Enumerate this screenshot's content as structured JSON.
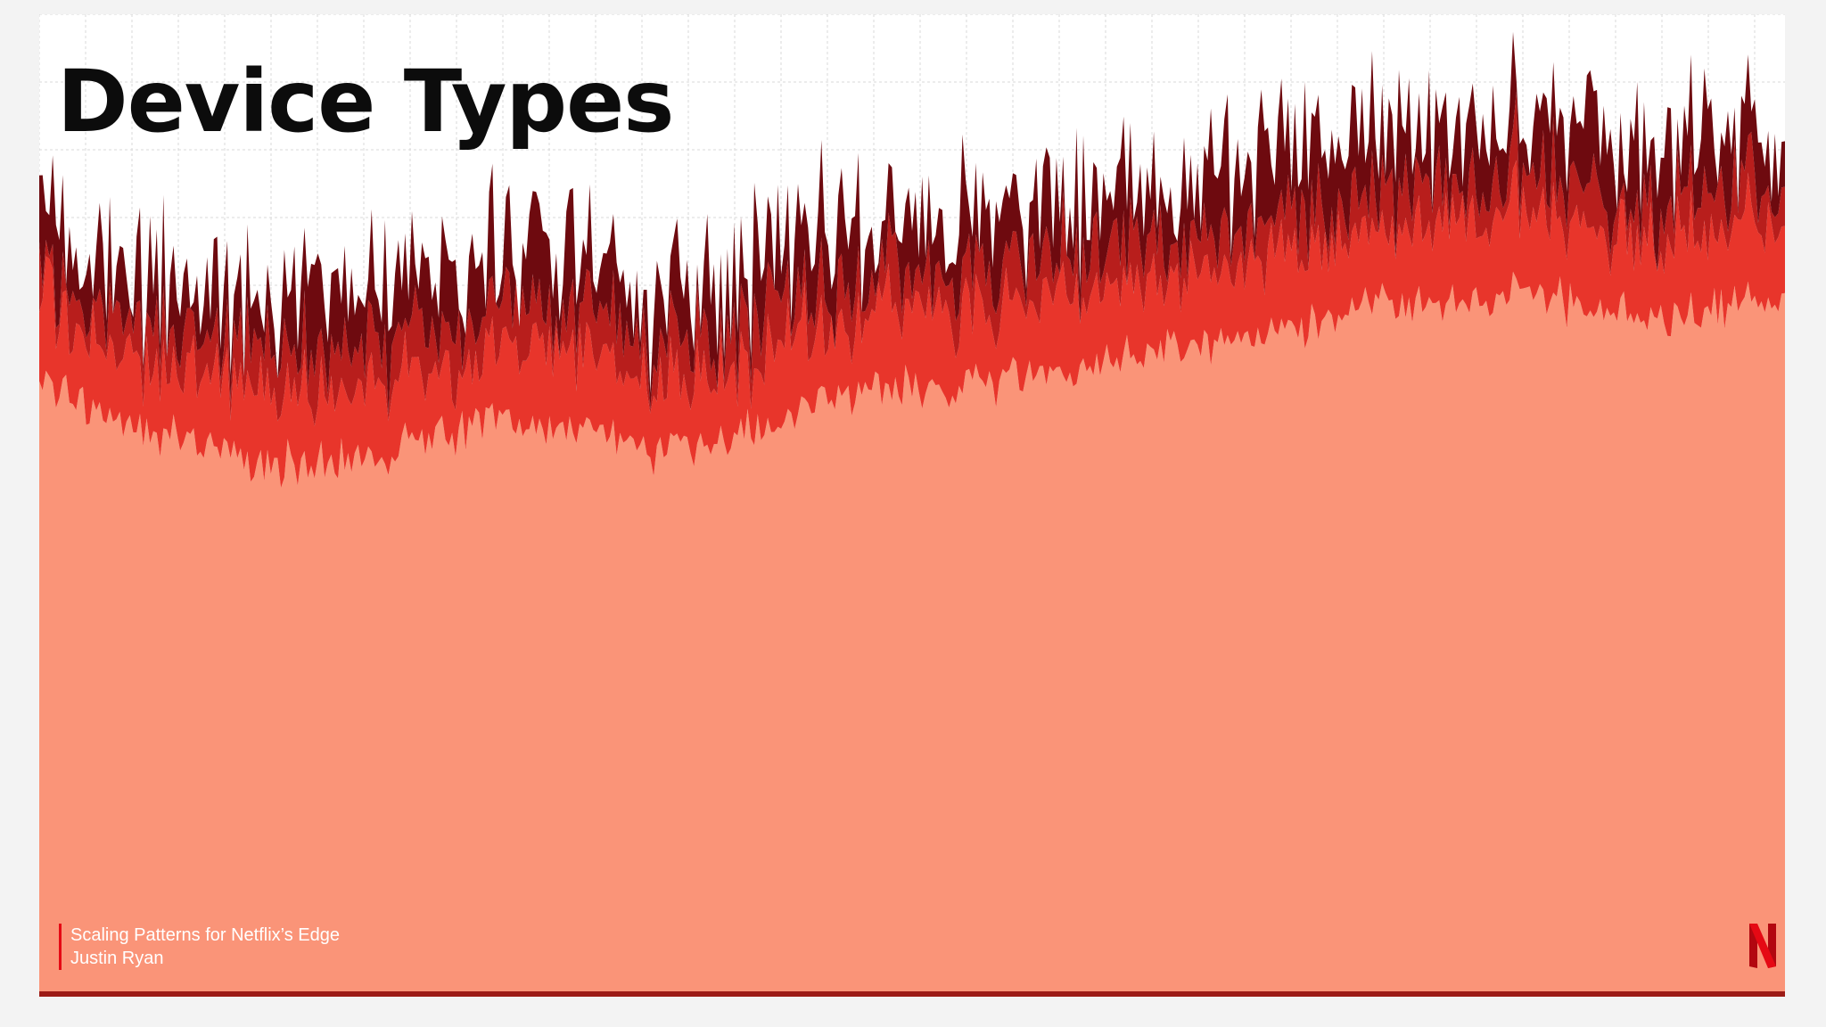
{
  "slide": {
    "title": "Device Types",
    "footer": {
      "talk": "Scaling Patterns for Netflix’s Edge",
      "author": "Justin Ryan"
    },
    "logo_icon": "netflix-n-logo",
    "colors": {
      "base_fill": "#fa9478",
      "bright_red": "#e8352b",
      "red": "#b81e1c",
      "dark_red": "#6e0a0f",
      "grid": "#d9d9d9",
      "netflix_red": "#e50914"
    }
  },
  "chart_data": {
    "type": "area",
    "stacked": true,
    "title": "Device Types",
    "xlabel": "",
    "ylabel": "",
    "grid": true,
    "legend": "none",
    "ylim": [
      0,
      100
    ],
    "series": [
      {
        "name": "",
        "color": "#fa9478",
        "values": [
          62,
          60,
          58,
          56,
          55,
          54,
          54,
          55,
          57,
          58,
          58,
          57,
          56,
          55,
          57,
          59,
          61,
          62,
          62,
          62,
          63,
          64,
          65,
          66,
          67,
          68,
          69,
          70,
          70,
          71,
          71,
          70,
          69,
          70,
          70,
          71
        ]
      },
      {
        "name": "",
        "color": "#e8352b",
        "values": [
          8,
          7,
          8,
          7,
          8,
          7,
          7,
          8,
          7,
          7,
          8,
          8,
          7,
          7,
          7,
          8,
          7,
          8,
          8,
          7,
          8,
          8,
          7,
          8,
          8,
          8,
          8,
          7,
          8,
          8,
          8,
          7,
          8,
          8,
          8,
          8
        ]
      },
      {
        "name": "",
        "color": "#b81e1c",
        "values": [
          4,
          4,
          4,
          4,
          4,
          4,
          4,
          4,
          4,
          4,
          4,
          4,
          4,
          4,
          4,
          4,
          4,
          4,
          4,
          4,
          4,
          4,
          4,
          4,
          4,
          4,
          4,
          4,
          4,
          4,
          4,
          4,
          4,
          4,
          4,
          4
        ]
      },
      {
        "name": "",
        "color": "#6e0a0f",
        "values": [
          6,
          5,
          6,
          5,
          5,
          5,
          6,
          5,
          6,
          5,
          6,
          5,
          5,
          5,
          6,
          6,
          6,
          6,
          5,
          6,
          6,
          6,
          6,
          6,
          6,
          6,
          6,
          6,
          6,
          6,
          6,
          6,
          6,
          6,
          6,
          6
        ]
      }
    ]
  }
}
